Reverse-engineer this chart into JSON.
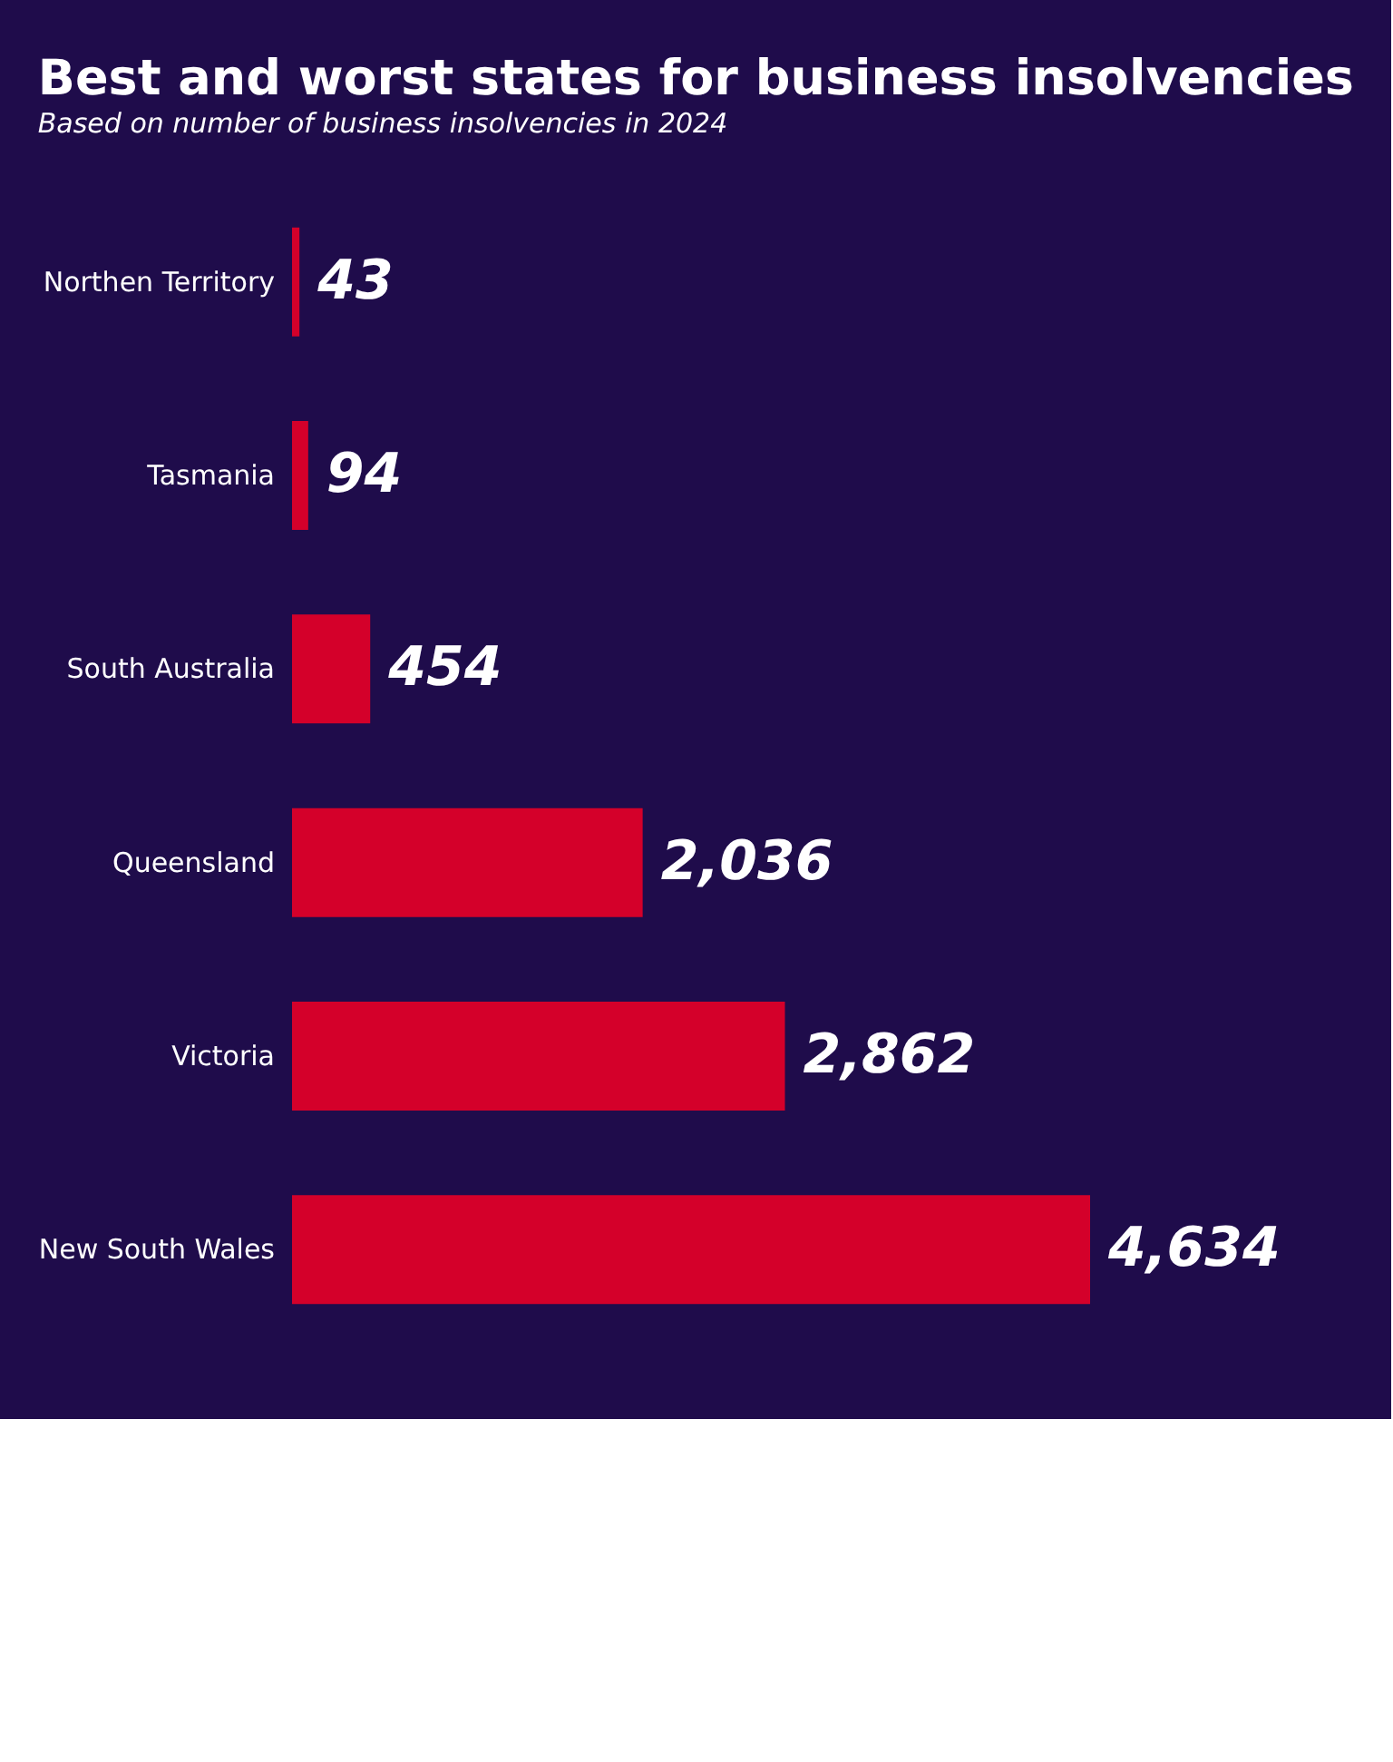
{
  "chart_data": {
    "type": "bar",
    "orientation": "horizontal",
    "title": "Best and worst states for business insolvencies",
    "subtitle": "Based on number of business insolvencies in 2024",
    "categories": [
      "Northen Territory",
      "Tasmania",
      "South Australia",
      "Queensland",
      "Victoria",
      "New South Wales"
    ],
    "values": [
      43,
      94,
      454,
      2036,
      2862,
      4634
    ],
    "value_labels": [
      "43",
      "94",
      "454",
      "2,036",
      "2,862",
      "4,634"
    ],
    "color": "#d4002a",
    "grid": false
  }
}
